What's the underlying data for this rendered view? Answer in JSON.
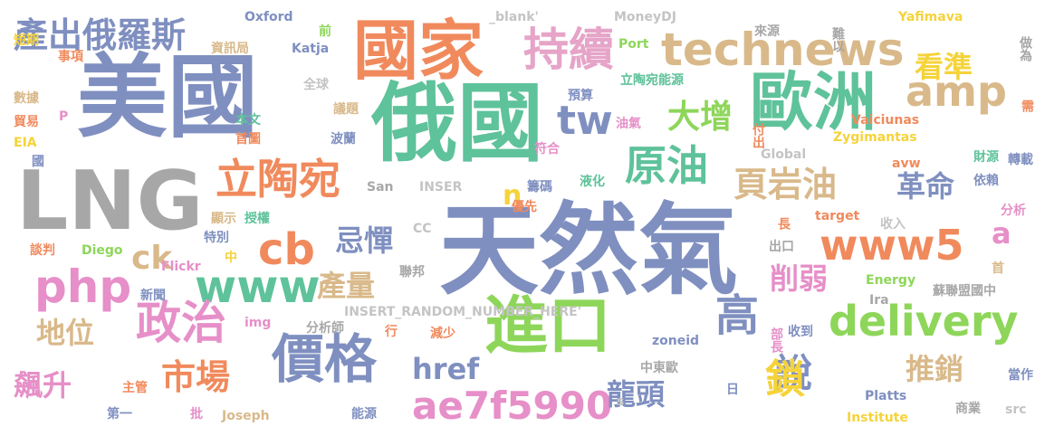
{
  "words": [
    {
      "text": "天然氣",
      "color": "#7f8fc0"
    },
    {
      "text": "美國",
      "color": "#7f8fc0"
    },
    {
      "text": "俄國",
      "color": "#5ec29a"
    },
    {
      "text": "LNG",
      "color": "#a7a7a7"
    },
    {
      "text": "國家",
      "color": "#f08a5d"
    },
    {
      "text": "歐洲",
      "color": "#5ec29a"
    },
    {
      "text": "進口",
      "color": "#8ed65a"
    },
    {
      "text": "technews",
      "color": "#d9b98a"
    },
    {
      "text": "持續",
      "color": "#e6a4c8"
    },
    {
      "text": "價格",
      "color": "#7f8fc0"
    },
    {
      "text": "delivery",
      "color": "#8ed65a"
    },
    {
      "text": "www5",
      "color": "#f08a5d"
    },
    {
      "text": "php",
      "color": "#e68fc8"
    },
    {
      "text": "www",
      "color": "#5ec29a"
    },
    {
      "text": "amp",
      "color": "#d9b98a"
    },
    {
      "text": "原油",
      "color": "#5ec29a"
    },
    {
      "text": "立陶宛",
      "color": "#f08a5d"
    },
    {
      "text": "政治",
      "color": "#e68fc8"
    },
    {
      "text": "ae7f5990",
      "color": "#e68fc8"
    },
    {
      "text": "cb",
      "color": "#f08a5d"
    },
    {
      "text": "產出俄羅斯",
      "color": "#7f8fc0"
    },
    {
      "text": "頁岩油",
      "color": "#d9b98a"
    },
    {
      "text": "高",
      "color": "#7f8fc0"
    },
    {
      "text": "說",
      "color": "#7f8fc0"
    },
    {
      "text": "鎖",
      "color": "#f5d33a"
    },
    {
      "text": "市場",
      "color": "#f08a5d"
    },
    {
      "text": "tw",
      "color": "#7f8fc0"
    },
    {
      "text": "大增",
      "color": "#8ed65a"
    },
    {
      "text": "看準",
      "color": "#f5d33a"
    },
    {
      "text": "革命",
      "color": "#7f8fc0"
    },
    {
      "text": "削弱",
      "color": "#e68fc8"
    },
    {
      "text": "推銷",
      "color": "#d9b98a"
    },
    {
      "text": "href",
      "color": "#7f8fc0"
    },
    {
      "text": "龍頭",
      "color": "#7f8fc0"
    },
    {
      "text": "產量",
      "color": "#d9b98a"
    },
    {
      "text": "忌憚",
      "color": "#7f8fc0"
    },
    {
      "text": "ck",
      "color": "#d9b98a"
    },
    {
      "text": "地位",
      "color": "#d9b98a"
    },
    {
      "text": "飆升",
      "color": "#e68fc8"
    },
    {
      "text": "a",
      "color": "#e68fc8"
    },
    {
      "text": "n",
      "color": "#f5d33a"
    },
    {
      "text": "INSERT_RANDOM_NUMBER_HERE'",
      "color": "#c4c4c4"
    },
    {
      "text": "_blank'",
      "color": "#c4c4c4"
    },
    {
      "text": "MoneyDJ",
      "color": "#c4c4c4"
    },
    {
      "text": "來源",
      "color": "#a7a7a7"
    },
    {
      "text": "難以",
      "color": "#a7a7a7"
    },
    {
      "text": "Yafimava",
      "color": "#f5d33a"
    },
    {
      "text": "Oxford",
      "color": "#7f8fc0"
    },
    {
      "text": "前",
      "color": "#8ed65a"
    },
    {
      "text": "資訊局",
      "color": "#d9b98a"
    },
    {
      "text": "Katja",
      "color": "#7f8fc0"
    },
    {
      "text": "Port",
      "color": "#8ed65a"
    },
    {
      "text": "立陶宛能源",
      "color": "#5ec29a"
    },
    {
      "text": "做為",
      "color": "#a7a7a7"
    },
    {
      "text": "短期",
      "color": "#f5d33a"
    },
    {
      "text": "事項",
      "color": "#f08a5d"
    },
    {
      "text": "數據",
      "color": "#d9b98a"
    },
    {
      "text": "全球",
      "color": "#c4c4c4"
    },
    {
      "text": "預算",
      "color": "#7f8fc0"
    },
    {
      "text": "議題",
      "color": "#d9b98a"
    },
    {
      "text": "Vaiciunas",
      "color": "#f08a5d"
    },
    {
      "text": "需",
      "color": "#f08a5d"
    },
    {
      "text": "貿易",
      "color": "#f08a5d"
    },
    {
      "text": "P",
      "color": "#e68fc8"
    },
    {
      "text": "本文",
      "color": "#5ec29a"
    },
    {
      "text": "油氣",
      "color": "#e68fc8"
    },
    {
      "text": "Zygimantas",
      "color": "#f5d33a"
    },
    {
      "text": "EIA",
      "color": "#f5d33a"
    },
    {
      "text": "首圖",
      "color": "#f08a5d"
    },
    {
      "text": "波蘭",
      "color": "#7f8fc0"
    },
    {
      "text": "符合",
      "color": "#e68fc8"
    },
    {
      "text": "付出",
      "color": "#f08a5d"
    },
    {
      "text": "國",
      "color": "#7f8fc0"
    },
    {
      "text": "Global",
      "color": "#c4c4c4"
    },
    {
      "text": "avw",
      "color": "#f08a5d"
    },
    {
      "text": "財源",
      "color": "#5ec29a"
    },
    {
      "text": "轉載",
      "color": "#7f8fc0"
    },
    {
      "text": "San",
      "color": "#a7a7a7"
    },
    {
      "text": "INSER",
      "color": "#c4c4c4"
    },
    {
      "text": "籌碼",
      "color": "#7f8fc0"
    },
    {
      "text": "液化",
      "color": "#5ec29a"
    },
    {
      "text": "依賴",
      "color": "#7f8fc0"
    },
    {
      "text": "顯示",
      "color": "#d9b98a"
    },
    {
      "text": "授權",
      "color": "#5ec29a"
    },
    {
      "text": "優先",
      "color": "#f08a5d"
    },
    {
      "text": "target",
      "color": "#f08a5d"
    },
    {
      "text": "長",
      "color": "#f08a5d"
    },
    {
      "text": "分析",
      "color": "#e68fc8"
    },
    {
      "text": "CC",
      "color": "#c4c4c4"
    },
    {
      "text": "收入",
      "color": "#c4c4c4"
    },
    {
      "text": "談判",
      "color": "#f08a5d"
    },
    {
      "text": "Diego",
      "color": "#8ed65a"
    },
    {
      "text": "特別",
      "color": "#7f8fc0"
    },
    {
      "text": "中",
      "color": "#f5d33a"
    },
    {
      "text": "出口",
      "color": "#a7a7a7"
    },
    {
      "text": "Flickr",
      "color": "#e68fc8"
    },
    {
      "text": "聯邦",
      "color": "#a7a7a7"
    },
    {
      "text": "首",
      "color": "#d9b98a"
    },
    {
      "text": "Energy",
      "color": "#8ed65a"
    },
    {
      "text": "新聞",
      "color": "#7f8fc0"
    },
    {
      "text": "蘇聯盟國中",
      "color": "#a7a7a7"
    },
    {
      "text": "Ira",
      "color": "#a7a7a7"
    },
    {
      "text": "img",
      "color": "#e68fc8"
    },
    {
      "text": "分析師",
      "color": "#a7a7a7"
    },
    {
      "text": "行",
      "color": "#f08a5d"
    },
    {
      "text": "收到",
      "color": "#7f8fc0"
    },
    {
      "text": "部長",
      "color": "#e68fc8"
    },
    {
      "text": "減少",
      "color": "#f08a5d"
    },
    {
      "text": "zoneid",
      "color": "#7f8fc0"
    },
    {
      "text": "中東歐",
      "color": "#a7a7a7"
    },
    {
      "text": "當作",
      "color": "#7f8fc0"
    },
    {
      "text": "主管",
      "color": "#f08a5d"
    },
    {
      "text": "s",
      "color": "#c4c4c4"
    },
    {
      "text": "日",
      "color": "#7f8fc0"
    },
    {
      "text": "Platts",
      "color": "#7f8fc0"
    },
    {
      "text": "商業",
      "color": "#a7a7a7"
    },
    {
      "text": "第一",
      "color": "#7f8fc0"
    },
    {
      "text": "批",
      "color": "#e68fc8"
    },
    {
      "text": "Joseph",
      "color": "#d9b98a"
    },
    {
      "text": "能源",
      "color": "#7f8fc0"
    },
    {
      "text": "src",
      "color": "#c4c4c4"
    },
    {
      "text": "Institute",
      "color": "#f5d33a"
    }
  ]
}
